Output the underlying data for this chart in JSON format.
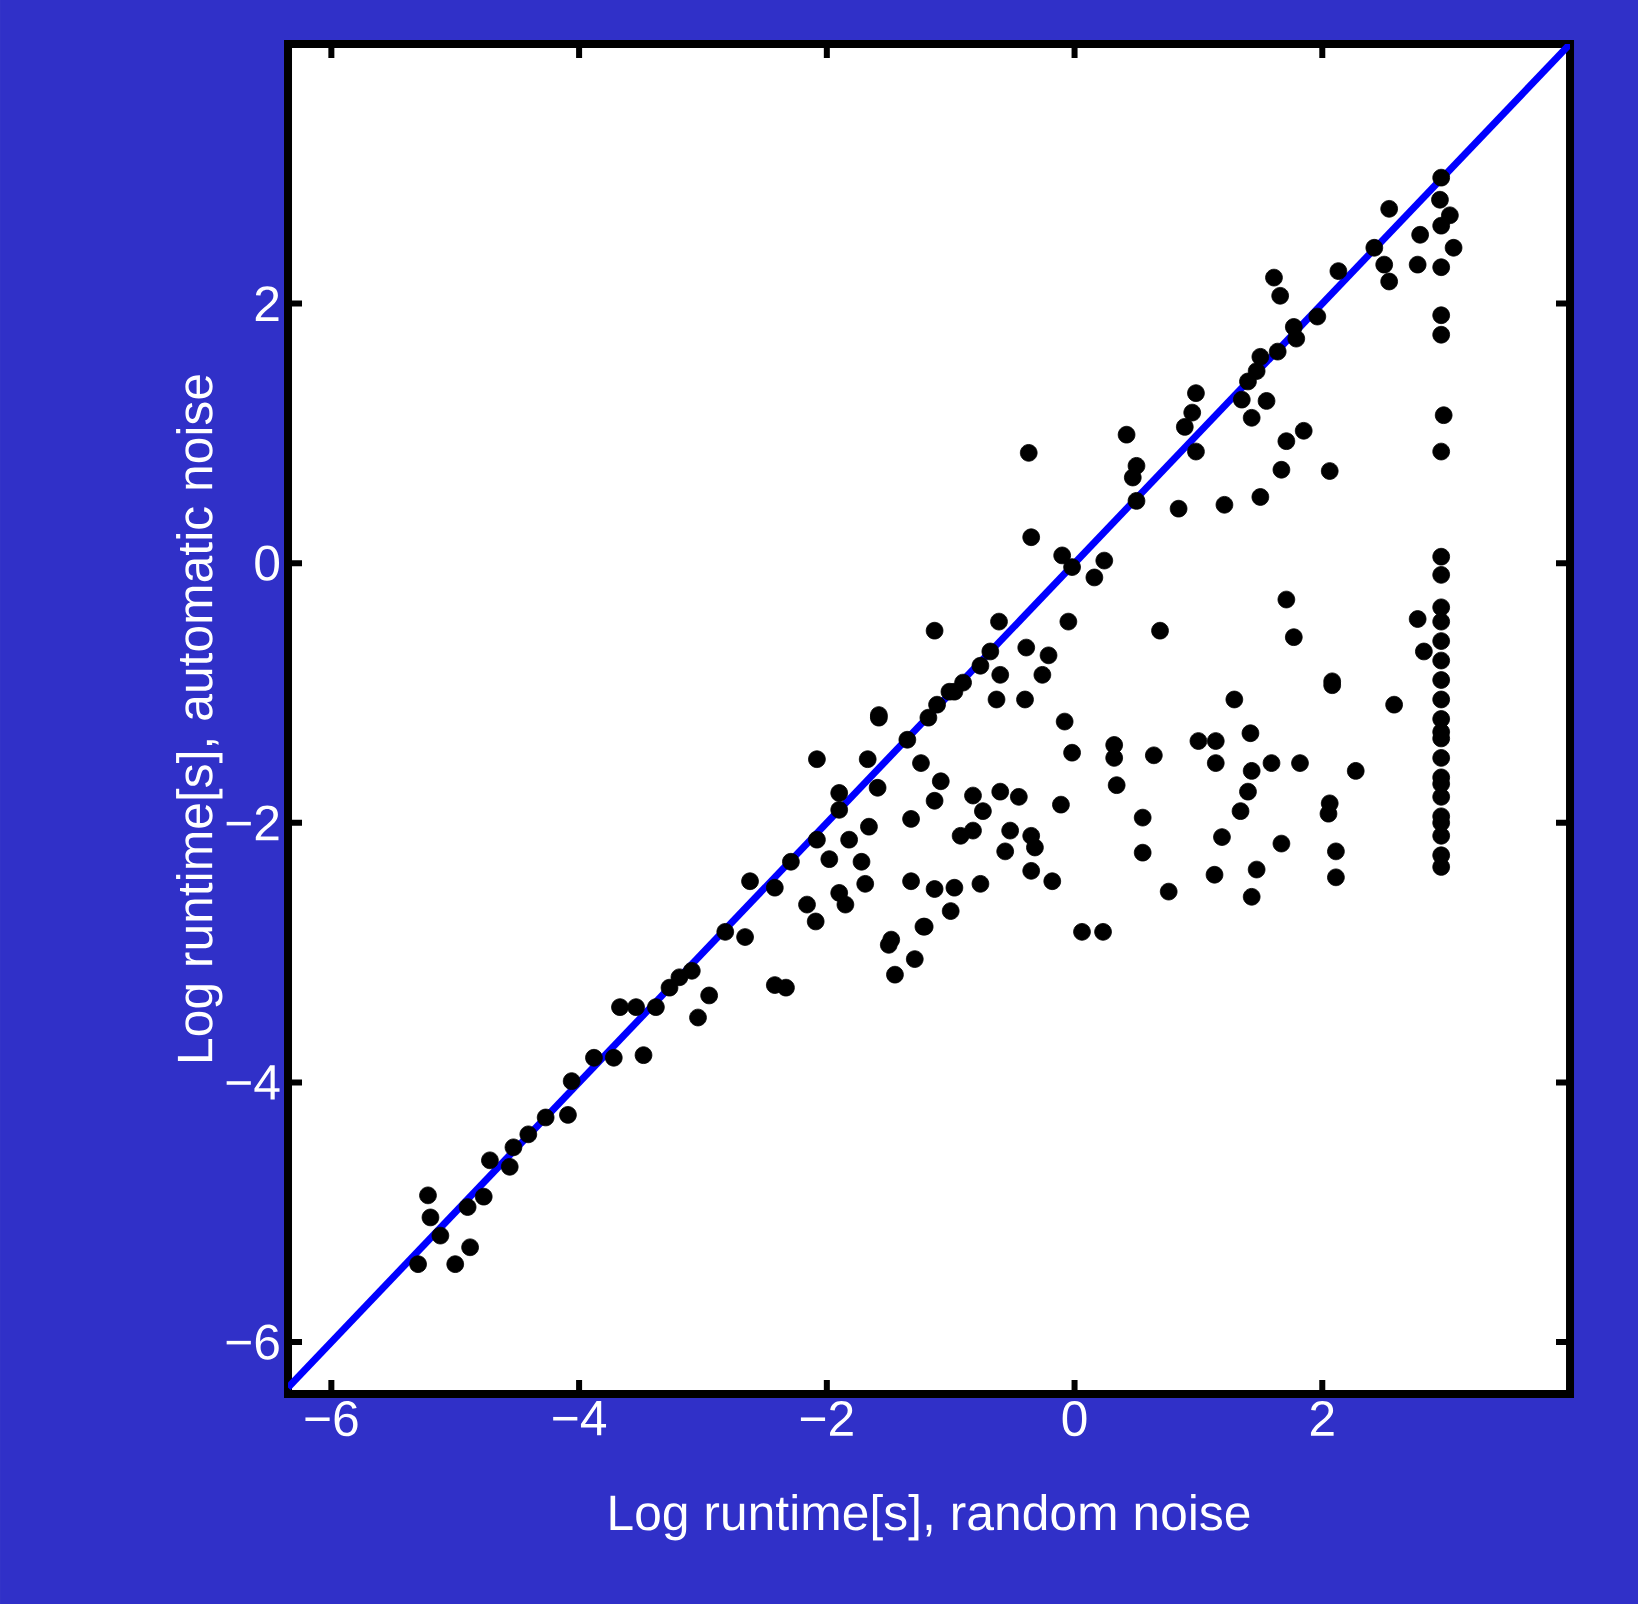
{
  "chart_data": {
    "type": "scatter",
    "xlabel": "Log runtime[s], random noise",
    "ylabel": "Log runtime[s], automatic noise",
    "xlim": [
      -6.35,
      4
    ],
    "ylim": [
      -6.4,
      4
    ],
    "xticks": [
      {
        "value": -6,
        "label": "−6"
      },
      {
        "value": -4,
        "label": "−4"
      },
      {
        "value": -2,
        "label": "−2"
      },
      0,
      2
    ],
    "yticks": [
      {
        "value": -6,
        "label": "−6"
      },
      {
        "value": -4,
        "label": "−4"
      },
      {
        "value": -2,
        "label": "−2"
      },
      0,
      2
    ],
    "marker": "circle",
    "series": [
      {
        "color": "#000000",
        "x": [
          -5.3,
          -5.2,
          -5.22,
          -5.12,
          -5.0,
          -4.88,
          -4.9,
          -4.77,
          -4.72,
          -4.56,
          -4.53,
          -4.41,
          -4.27,
          -4.09,
          -4.06,
          -3.88,
          -3.72,
          -3.48,
          -3.67,
          -3.54,
          -3.38,
          -3.27,
          -3.19,
          -3.09,
          -2.95,
          -3.04,
          -2.82,
          -2.66,
          -2.33,
          -2.42,
          -2.09,
          -1.5,
          -1.45,
          -1.29,
          -1.22,
          -2.62,
          -2.42,
          -2.29,
          -2.08,
          -1.9,
          -2.08,
          -1.9,
          -1.67,
          -1.59,
          -1.66,
          -1.82,
          -1.98,
          -1.72,
          -1.69,
          -2.16,
          -1.85,
          -1.9,
          -1.58,
          -1.35,
          -1.24,
          -1.32,
          -1.08,
          -1.13,
          -1.18,
          -0.97,
          -1.32,
          -1.13,
          -0.97,
          -0.76,
          -1.21,
          -1.0,
          -1.48,
          -0.82,
          -0.74,
          -0.92,
          -0.82,
          -0.6,
          -0.45,
          -0.52,
          -0.56,
          -0.35,
          -0.35,
          -0.18,
          -0.32,
          -0.63,
          -0.4,
          -0.08,
          -0.02,
          -0.11,
          0.06,
          0.23,
          0.32,
          0.32,
          0.34,
          0.64,
          0.55,
          0.55,
          0.76,
          1.0,
          1.14,
          1.14,
          1.29,
          1.42,
          1.43,
          1.59,
          1.4,
          1.34,
          1.19,
          1.13,
          1.47,
          1.43,
          1.67,
          1.82,
          2.08,
          2.27,
          2.06,
          2.05,
          2.11,
          2.11,
          2.58,
          -0.37,
          -0.35,
          -0.1,
          -0.02,
          0.24,
          0.16,
          -0.05,
          -0.61,
          -1.13,
          -0.68,
          -0.39,
          -0.21,
          -0.76,
          -0.6,
          -0.26,
          -0.9,
          -1.01,
          -1.11,
          -1.58,
          0.42,
          0.5,
          0.47,
          0.5,
          0.89,
          0.98,
          0.84,
          1.21,
          1.5,
          1.67,
          1.85,
          2.06,
          1.71,
          0.69,
          1.71,
          1.77,
          2.08,
          2.77,
          2.82,
          0.98,
          0.95,
          1.4,
          1.35,
          1.55,
          1.43,
          1.5,
          1.64,
          1.47,
          1.77,
          1.79,
          1.61,
          1.66,
          1.96,
          2.13,
          2.42,
          2.5,
          2.54,
          2.54,
          2.79,
          2.77,
          2.95,
          3.03,
          3.06,
          2.96,
          2.96,
          2.96,
          2.98,
          2.96,
          2.96,
          2.96,
          2.96,
          2.96,
          2.96,
          2.96,
          2.96,
          2.96,
          2.96,
          2.96,
          2.96,
          2.96,
          2.96,
          2.96,
          2.96,
          2.96,
          2.96,
          2.96,
          2.96,
          2.96,
          2.96,
          2.96
        ],
        "values": [
          -5.4,
          -5.04,
          -4.87,
          -5.18,
          -5.4,
          -5.27,
          -4.96,
          -4.88,
          -4.6,
          -4.65,
          -4.5,
          -4.4,
          -4.27,
          -4.25,
          -3.99,
          -3.81,
          -3.81,
          -3.79,
          -3.42,
          -3.42,
          -3.42,
          -3.27,
          -3.19,
          -3.14,
          -3.33,
          -3.5,
          -2.84,
          -2.88,
          -3.27,
          -3.25,
          -2.76,
          -2.94,
          -3.17,
          -3.05,
          -2.8,
          -2.45,
          -2.5,
          -2.3,
          -2.13,
          -1.9,
          -1.51,
          -1.77,
          -1.51,
          -1.73,
          -2.03,
          -2.13,
          -2.28,
          -2.3,
          -2.47,
          -2.63,
          -2.63,
          -2.54,
          -1.19,
          -1.36,
          -1.54,
          -1.97,
          -1.68,
          -1.83,
          -1.19,
          -0.99,
          -2.45,
          -2.51,
          -2.5,
          -2.47,
          -2.8,
          -2.68,
          -2.9,
          -1.79,
          -1.91,
          -2.1,
          -2.06,
          -1.76,
          -1.8,
          -2.06,
          -2.22,
          -2.1,
          -2.37,
          -2.45,
          -2.19,
          -1.05,
          -1.05,
          -1.22,
          -1.46,
          -1.86,
          -2.84,
          -2.84,
          -1.4,
          -1.5,
          -1.71,
          -1.48,
          -1.96,
          -2.23,
          -2.53,
          -1.37,
          -1.37,
          -1.54,
          -1.05,
          -1.31,
          -1.6,
          -1.54,
          -1.76,
          -1.91,
          -2.11,
          -2.4,
          -2.36,
          -2.57,
          -2.16,
          -1.54,
          -0.94,
          -1.6,
          -1.85,
          -1.93,
          -2.22,
          -2.42,
          -1.09,
          0.85,
          0.2,
          0.06,
          -0.03,
          0.02,
          -0.11,
          -0.45,
          -0.45,
          -0.52,
          -0.68,
          -0.65,
          -0.71,
          -0.79,
          -0.86,
          -0.86,
          -0.92,
          -0.99,
          -1.09,
          -1.17,
          0.99,
          0.75,
          0.66,
          0.48,
          1.05,
          0.86,
          0.42,
          0.45,
          0.51,
          0.72,
          1.02,
          0.71,
          0.94,
          -0.52,
          -0.28,
          -0.57,
          -0.91,
          -0.43,
          -0.68,
          1.31,
          1.16,
          1.4,
          1.26,
          1.25,
          1.12,
          1.59,
          1.63,
          1.48,
          1.82,
          1.73,
          2.2,
          2.06,
          1.9,
          2.25,
          2.43,
          2.3,
          2.17,
          2.73,
          2.53,
          2.3,
          2.8,
          2.68,
          2.43,
          2.97,
          2.28,
          1.91,
          1.14,
          1.76,
          0.86,
          0.05,
          -0.09,
          -0.34,
          -0.45,
          -0.6,
          -0.75,
          -0.9,
          -1.05,
          -1.2,
          -1.35,
          -1.5,
          -1.65,
          -1.8,
          -1.95,
          -2.1,
          -2.25,
          -2.34,
          2.6,
          -1.3,
          -1.7,
          -2.0
        ]
      },
      {
        "type": "line",
        "color": "#0000ff",
        "marker": "none",
        "x": [
          -6.35,
          4
        ],
        "values": [
          -6.35,
          4
        ]
      }
    ]
  }
}
